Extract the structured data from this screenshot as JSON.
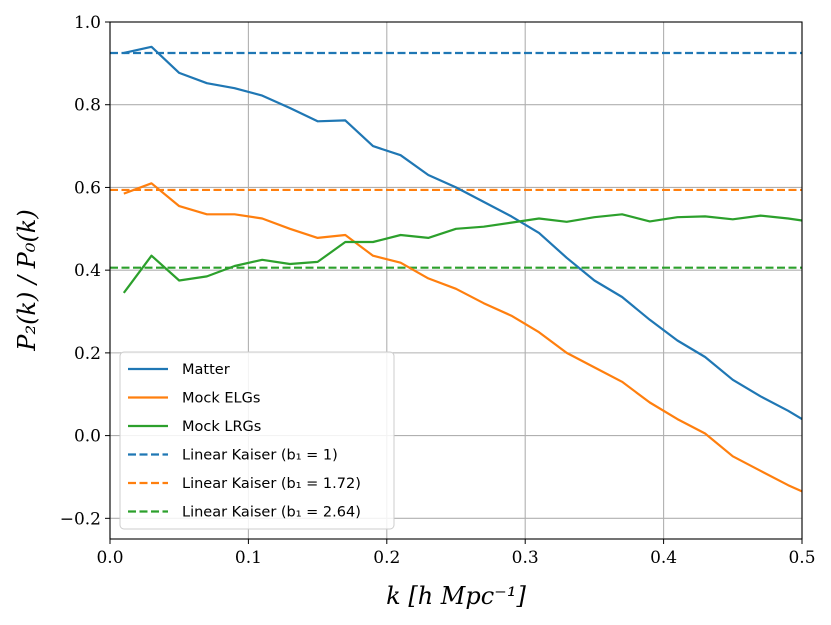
{
  "chart_data": {
    "type": "line",
    "title": "",
    "xlabel": "k [h Mpc⁻¹]",
    "ylabel": "P₂(k) / P₀(k)",
    "xlim": [
      0.0,
      0.5
    ],
    "ylim": [
      -0.25,
      1.0
    ],
    "grid": true,
    "legend_position": "lower-left",
    "x_ticks": [
      0.0,
      0.1,
      0.2,
      0.3,
      0.4,
      0.5
    ],
    "x_tick_labels": [
      "0.0",
      "0.1",
      "0.2",
      "0.3",
      "0.4",
      "0.5"
    ],
    "y_ticks": [
      -0.2,
      0.0,
      0.2,
      0.4,
      0.6,
      0.8,
      1.0
    ],
    "y_tick_labels": [
      "−0.2",
      "0.0",
      "0.2",
      "0.4",
      "0.6",
      "0.8",
      "1.0"
    ],
    "series": [
      {
        "name": "Matter",
        "color": "#1f77b4",
        "style": "solid",
        "x": [
          0.01,
          0.03,
          0.05,
          0.07,
          0.09,
          0.11,
          0.13,
          0.15,
          0.17,
          0.19,
          0.21,
          0.23,
          0.25,
          0.27,
          0.29,
          0.31,
          0.33,
          0.35,
          0.37,
          0.39,
          0.41,
          0.43,
          0.45,
          0.47,
          0.49,
          0.5
        ],
        "values": [
          0.925,
          0.94,
          0.877,
          0.852,
          0.84,
          0.822,
          0.792,
          0.76,
          0.762,
          0.7,
          0.678,
          0.63,
          0.6,
          0.565,
          0.53,
          0.49,
          0.43,
          0.375,
          0.335,
          0.28,
          0.23,
          0.19,
          0.135,
          0.095,
          0.06,
          0.04
        ]
      },
      {
        "name": "Mock ELGs",
        "color": "#ff7f0e",
        "style": "solid",
        "x": [
          0.01,
          0.03,
          0.05,
          0.07,
          0.09,
          0.11,
          0.13,
          0.15,
          0.17,
          0.19,
          0.21,
          0.23,
          0.25,
          0.27,
          0.29,
          0.31,
          0.33,
          0.35,
          0.37,
          0.39,
          0.41,
          0.43,
          0.45,
          0.47,
          0.49,
          0.5
        ],
        "values": [
          0.585,
          0.61,
          0.555,
          0.535,
          0.535,
          0.525,
          0.5,
          0.478,
          0.485,
          0.435,
          0.418,
          0.38,
          0.355,
          0.32,
          0.29,
          0.25,
          0.2,
          0.165,
          0.13,
          0.08,
          0.04,
          0.005,
          -0.05,
          -0.085,
          -0.12,
          -0.135
        ]
      },
      {
        "name": "Mock LRGs",
        "color": "#2ca02c",
        "style": "solid",
        "x": [
          0.01,
          0.03,
          0.05,
          0.07,
          0.09,
          0.11,
          0.13,
          0.15,
          0.17,
          0.19,
          0.21,
          0.23,
          0.25,
          0.27,
          0.29,
          0.31,
          0.33,
          0.35,
          0.37,
          0.39,
          0.41,
          0.43,
          0.45,
          0.47,
          0.49,
          0.5
        ],
        "values": [
          0.345,
          0.435,
          0.375,
          0.385,
          0.41,
          0.425,
          0.415,
          0.42,
          0.468,
          0.468,
          0.485,
          0.478,
          0.5,
          0.505,
          0.515,
          0.525,
          0.517,
          0.528,
          0.535,
          0.518,
          0.528,
          0.53,
          0.523,
          0.532,
          0.525,
          0.52
        ]
      }
    ],
    "reference_lines": [
      {
        "name": "Linear Kaiser",
        "param_label": "(b₁ = 1)",
        "color": "#1f77b4",
        "style": "dashed",
        "y": 0.925
      },
      {
        "name": "Linear Kaiser",
        "param_label": "(b₁ = 1.72)",
        "color": "#ff7f0e",
        "style": "dashed",
        "y": 0.594
      },
      {
        "name": "Linear Kaiser",
        "param_label": "(b₁ = 2.64)",
        "color": "#2ca02c",
        "style": "dashed",
        "y": 0.406
      }
    ]
  }
}
